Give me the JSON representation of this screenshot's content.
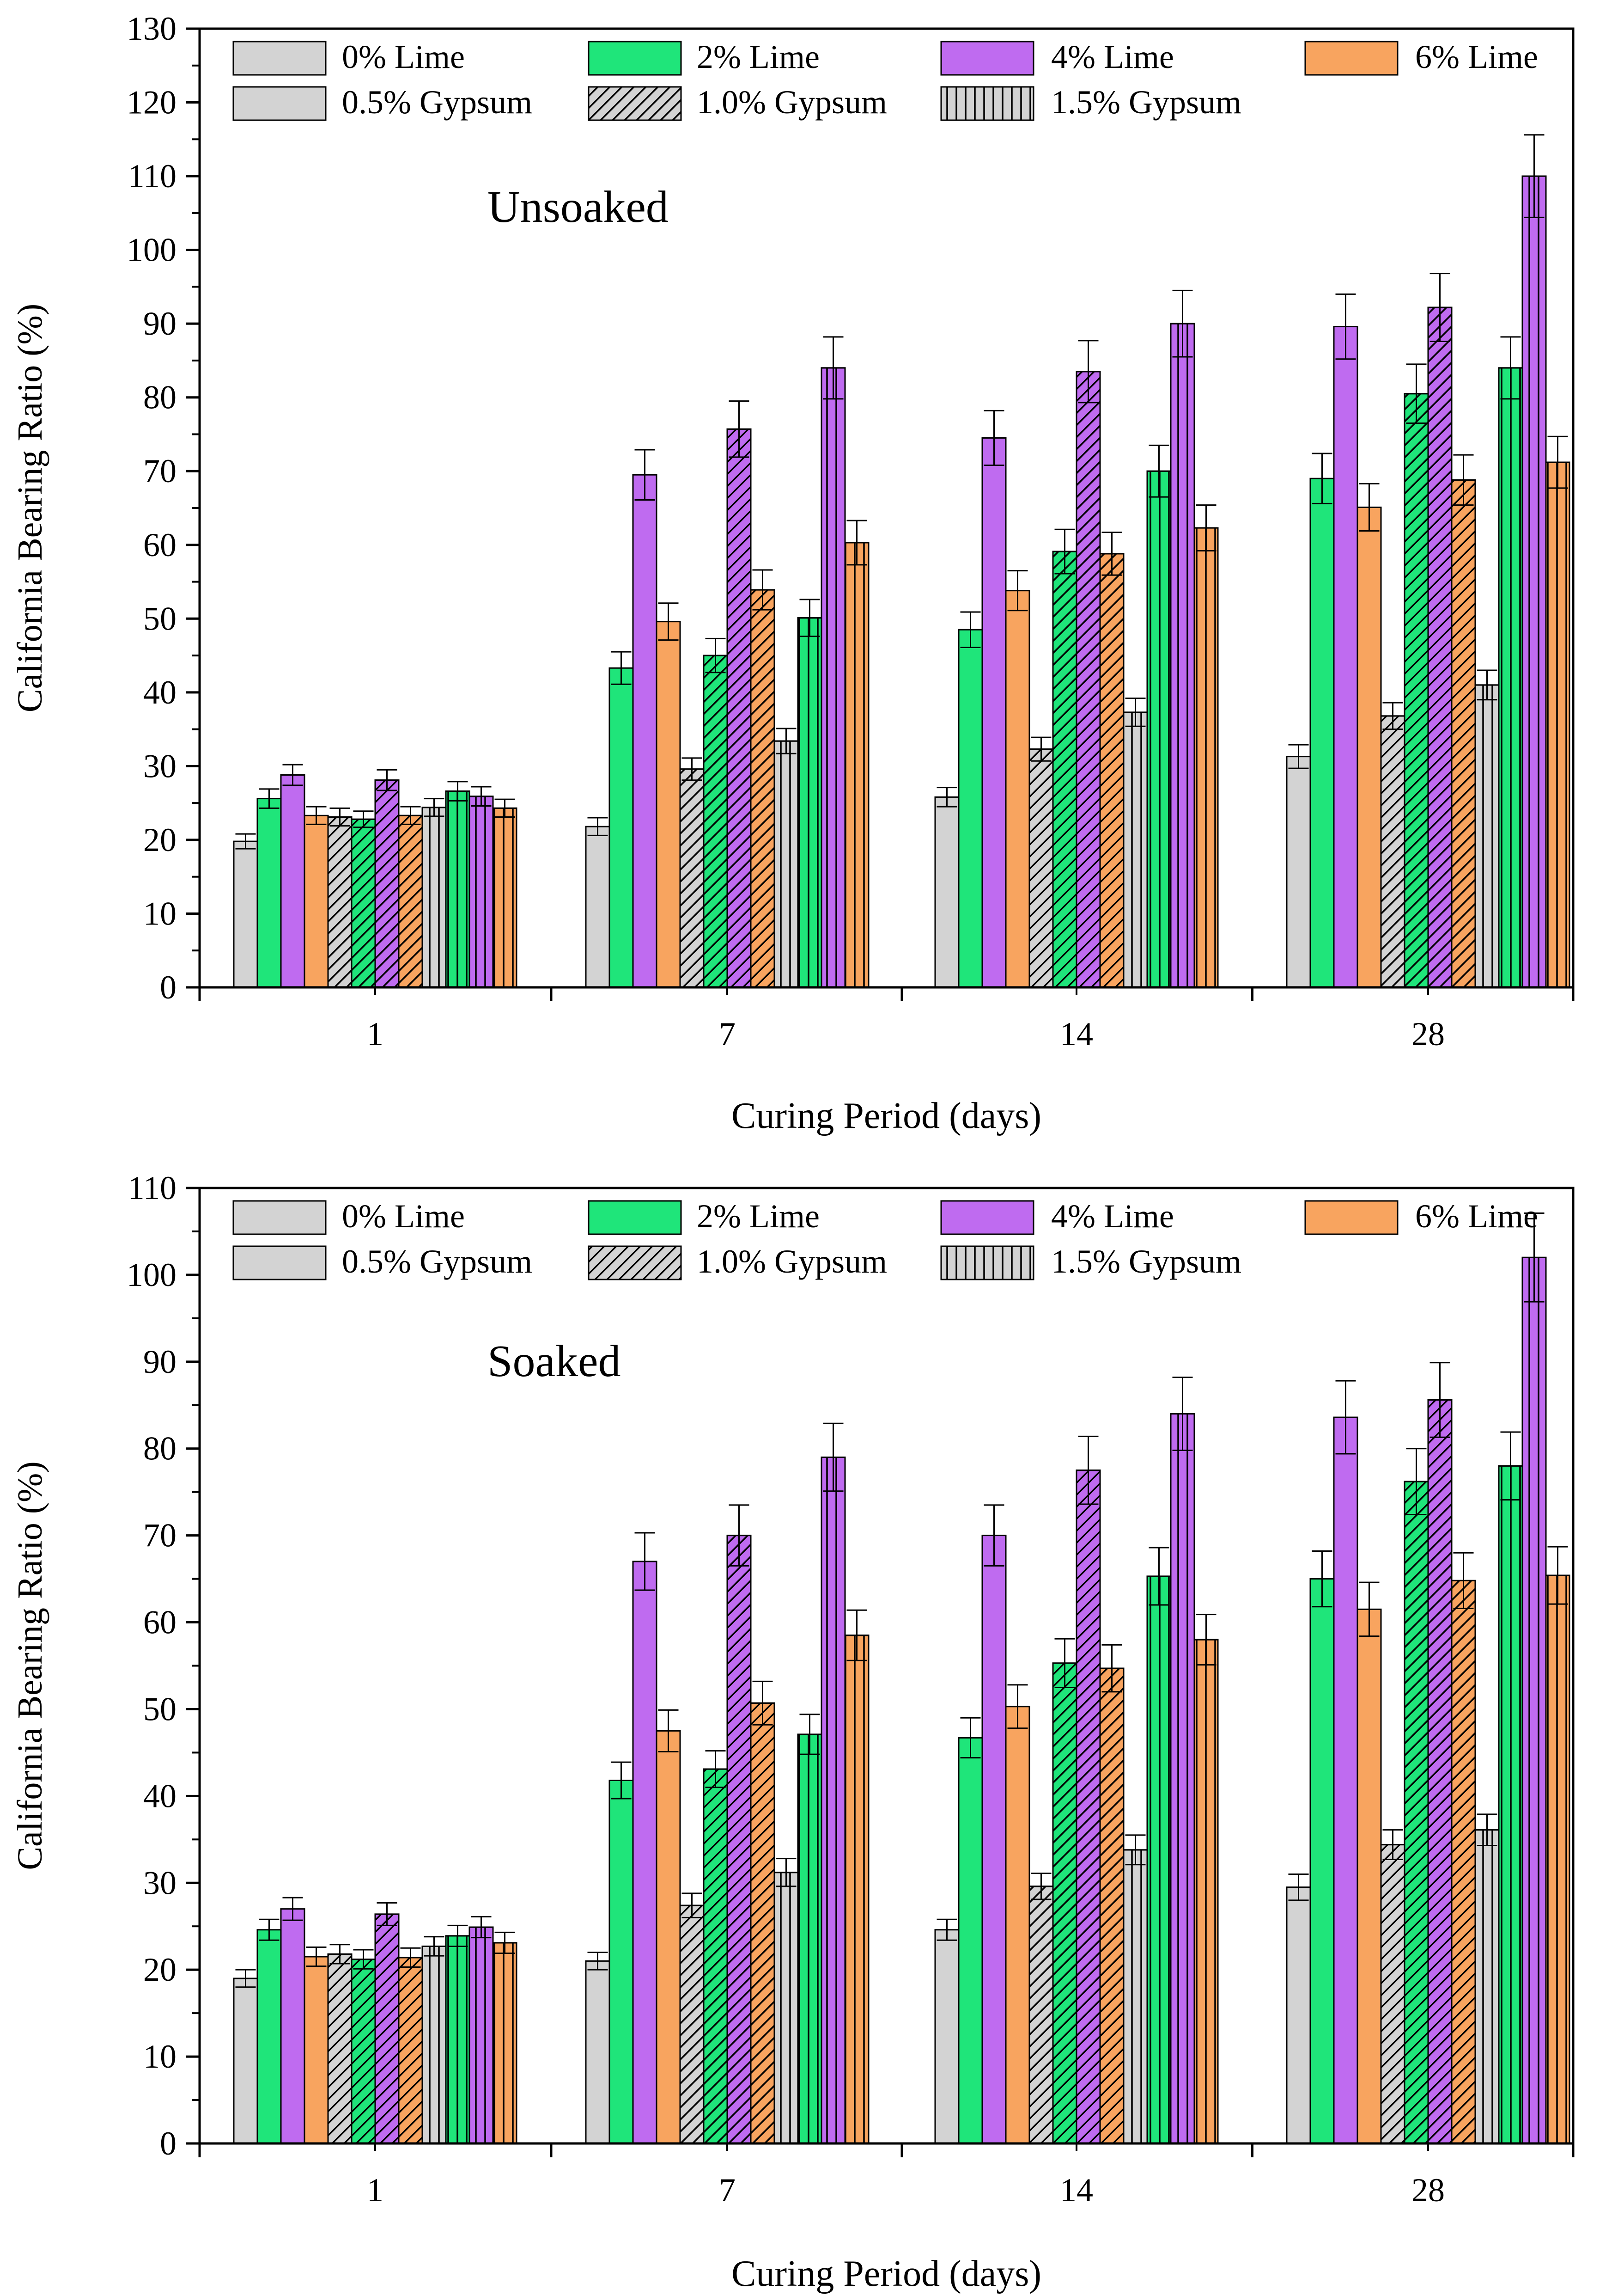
{
  "colors": {
    "0% Lime": "#d3d3d3",
    "2% Lime": "#1fe57a",
    "4% Lime": "#bf6bf0",
    "6% Lime": "#f8a45f"
  },
  "chart_data": [
    {
      "type": "bar",
      "title": "",
      "annotation": "Unsoaked",
      "xlabel": "Curing Period (days)",
      "ylabel": "California Bearing Ratio (%)",
      "ylim": [
        0,
        130
      ],
      "yticks": [
        0,
        10,
        20,
        30,
        40,
        50,
        60,
        70,
        80,
        90,
        100,
        110,
        120,
        130
      ],
      "categories": [
        "1",
        "7",
        "14",
        "28"
      ],
      "legend": [
        {
          "label": "0% Lime",
          "kind": "color",
          "color": "#d3d3d3"
        },
        {
          "label": "2% Lime",
          "kind": "color",
          "color": "#1fe57a"
        },
        {
          "label": "4% Lime",
          "kind": "color",
          "color": "#bf6bf0"
        },
        {
          "label": "6% Lime",
          "kind": "color",
          "color": "#f8a45f"
        },
        {
          "label": "0.5% Gypsum",
          "kind": "pattern",
          "pattern": "none"
        },
        {
          "label": "1.0% Gypsum",
          "kind": "pattern",
          "pattern": "diagonal"
        },
        {
          "label": "1.5% Gypsum",
          "kind": "pattern",
          "pattern": "vertical"
        }
      ],
      "series": [
        {
          "name": "0% Lime + 0.5% Gypsum",
          "lime": "0% Lime",
          "gypsum": "0.5% Gypsum",
          "values": [
            19.8,
            21.8,
            25.8,
            31.3
          ],
          "errors": [
            1.0,
            1.2,
            1.3,
            1.6
          ]
        },
        {
          "name": "2% Lime + 0.5% Gypsum",
          "lime": "2% Lime",
          "gypsum": "0.5% Gypsum",
          "values": [
            25.6,
            43.3,
            48.5,
            69.0
          ],
          "errors": [
            1.3,
            2.2,
            2.4,
            3.4
          ]
        },
        {
          "name": "4% Lime + 0.5% Gypsum",
          "lime": "4% Lime",
          "gypsum": "0.5% Gypsum",
          "values": [
            28.8,
            69.5,
            74.5,
            89.6
          ],
          "errors": [
            1.4,
            3.4,
            3.7,
            4.4
          ]
        },
        {
          "name": "6% Lime + 0.5% Gypsum",
          "lime": "6% Lime",
          "gypsum": "0.5% Gypsum",
          "values": [
            23.3,
            49.6,
            53.8,
            65.1
          ],
          "errors": [
            1.2,
            2.5,
            2.7,
            3.2
          ]
        },
        {
          "name": "0% Lime + 1.0% Gypsum",
          "lime": "0% Lime",
          "gypsum": "1.0% Gypsum",
          "values": [
            23.1,
            29.6,
            32.3,
            36.8
          ],
          "errors": [
            1.2,
            1.5,
            1.6,
            1.8
          ]
        },
        {
          "name": "2% Lime + 1.0% Gypsum",
          "lime": "2% Lime",
          "gypsum": "1.0% Gypsum",
          "values": [
            22.8,
            45.0,
            59.1,
            80.5
          ],
          "errors": [
            1.1,
            2.3,
            3.0,
            4.0
          ]
        },
        {
          "name": "4% Lime + 1.0% Gypsum",
          "lime": "4% Lime",
          "gypsum": "1.0% Gypsum",
          "values": [
            28.1,
            75.7,
            83.5,
            92.2
          ],
          "errors": [
            1.4,
            3.8,
            4.2,
            4.6
          ]
        },
        {
          "name": "6% Lime + 1.0% Gypsum",
          "lime": "6% Lime",
          "gypsum": "1.0% Gypsum",
          "values": [
            23.3,
            53.9,
            58.8,
            68.8
          ],
          "errors": [
            1.2,
            2.7,
            2.9,
            3.4
          ]
        },
        {
          "name": "0% Lime + 1.5% Gypsum",
          "lime": "0% Lime",
          "gypsum": "1.5% Gypsum",
          "values": [
            24.4,
            33.4,
            37.3,
            41.0
          ],
          "errors": [
            1.2,
            1.7,
            1.9,
            2.0
          ]
        },
        {
          "name": "2% Lime + 1.5% Gypsum",
          "lime": "2% Lime",
          "gypsum": "1.5% Gypsum",
          "values": [
            26.6,
            50.1,
            70.0,
            84.0
          ],
          "errors": [
            1.3,
            2.5,
            3.5,
            4.2
          ]
        },
        {
          "name": "4% Lime + 1.5% Gypsum",
          "lime": "4% Lime",
          "gypsum": "1.5% Gypsum",
          "values": [
            25.9,
            84.0,
            90.0,
            110.0
          ],
          "errors": [
            1.3,
            4.2,
            4.5,
            5.6
          ]
        },
        {
          "name": "6% Lime + 1.5% Gypsum",
          "lime": "6% Lime",
          "gypsum": "1.5% Gypsum",
          "values": [
            24.3,
            60.3,
            62.3,
            71.2
          ],
          "errors": [
            1.2,
            3.0,
            3.1,
            3.5
          ]
        }
      ]
    },
    {
      "type": "bar",
      "title": "",
      "annotation": "Soaked",
      "xlabel": "Curing Period (days)",
      "ylabel": "California Bearing Ratio (%)",
      "ylim": [
        0,
        110
      ],
      "yticks": [
        0,
        10,
        20,
        30,
        40,
        50,
        60,
        70,
        80,
        90,
        100,
        110
      ],
      "categories": [
        "1",
        "7",
        "14",
        "28"
      ],
      "legend": [
        {
          "label": "0% Lime",
          "kind": "color",
          "color": "#d3d3d3"
        },
        {
          "label": "2% Lime",
          "kind": "color",
          "color": "#1fe57a"
        },
        {
          "label": "4% Lime",
          "kind": "color",
          "color": "#bf6bf0"
        },
        {
          "label": "6% Lime",
          "kind": "color",
          "color": "#f8a45f"
        },
        {
          "label": "0.5% Gypsum",
          "kind": "pattern",
          "pattern": "none"
        },
        {
          "label": "1.0% Gypsum",
          "kind": "pattern",
          "pattern": "diagonal"
        },
        {
          "label": "1.5% Gypsum",
          "kind": "pattern",
          "pattern": "vertical"
        }
      ],
      "series": [
        {
          "name": "0% Lime + 0.5% Gypsum",
          "lime": "0% Lime",
          "gypsum": "0.5% Gypsum",
          "values": [
            19.0,
            21.0,
            24.6,
            29.5
          ],
          "errors": [
            1.0,
            1.0,
            1.2,
            1.5
          ]
        },
        {
          "name": "2% Lime + 0.5% Gypsum",
          "lime": "2% Lime",
          "gypsum": "0.5% Gypsum",
          "values": [
            24.6,
            41.8,
            46.7,
            65.0
          ],
          "errors": [
            1.2,
            2.1,
            2.3,
            3.2
          ]
        },
        {
          "name": "4% Lime + 0.5% Gypsum",
          "lime": "4% Lime",
          "gypsum": "0.5% Gypsum",
          "values": [
            27.0,
            67.0,
            70.0,
            83.6
          ],
          "errors": [
            1.3,
            3.3,
            3.5,
            4.2
          ]
        },
        {
          "name": "6% Lime + 0.5% Gypsum",
          "lime": "6% Lime",
          "gypsum": "0.5% Gypsum",
          "values": [
            21.5,
            47.5,
            50.3,
            61.5
          ],
          "errors": [
            1.1,
            2.4,
            2.5,
            3.1
          ]
        },
        {
          "name": "0% Lime + 1.0% Gypsum",
          "lime": "0% Lime",
          "gypsum": "1.0% Gypsum",
          "values": [
            21.8,
            27.4,
            29.6,
            34.4
          ],
          "errors": [
            1.1,
            1.4,
            1.5,
            1.7
          ]
        },
        {
          "name": "2% Lime + 1.0% Gypsum",
          "lime": "2% Lime",
          "gypsum": "1.0% Gypsum",
          "values": [
            21.2,
            43.1,
            55.3,
            76.2
          ],
          "errors": [
            1.1,
            2.1,
            2.8,
            3.8
          ]
        },
        {
          "name": "4% Lime + 1.0% Gypsum",
          "lime": "4% Lime",
          "gypsum": "1.0% Gypsum",
          "values": [
            26.4,
            70.0,
            77.5,
            85.6
          ],
          "errors": [
            1.3,
            3.5,
            3.9,
            4.3
          ]
        },
        {
          "name": "6% Lime + 1.0% Gypsum",
          "lime": "6% Lime",
          "gypsum": "1.0% Gypsum",
          "values": [
            21.4,
            50.7,
            54.7,
            64.8
          ],
          "errors": [
            1.1,
            2.5,
            2.7,
            3.2
          ]
        },
        {
          "name": "0% Lime + 1.5% Gypsum",
          "lime": "0% Lime",
          "gypsum": "1.5% Gypsum",
          "values": [
            22.7,
            31.2,
            33.8,
            36.1
          ],
          "errors": [
            1.1,
            1.6,
            1.7,
            1.8
          ]
        },
        {
          "name": "2% Lime + 1.5% Gypsum",
          "lime": "2% Lime",
          "gypsum": "1.5% Gypsum",
          "values": [
            23.9,
            47.1,
            65.3,
            78.0
          ],
          "errors": [
            1.2,
            2.3,
            3.3,
            3.9
          ]
        },
        {
          "name": "4% Lime + 1.5% Gypsum",
          "lime": "4% Lime",
          "gypsum": "1.5% Gypsum",
          "values": [
            24.9,
            79.0,
            84.0,
            102.0
          ],
          "errors": [
            1.2,
            3.9,
            4.2,
            5.1
          ]
        },
        {
          "name": "6% Lime + 1.5% Gypsum",
          "lime": "6% Lime",
          "gypsum": "1.5% Gypsum",
          "values": [
            23.1,
            58.5,
            58.0,
            65.4
          ],
          "errors": [
            1.2,
            2.9,
            2.9,
            3.3
          ]
        }
      ]
    }
  ]
}
